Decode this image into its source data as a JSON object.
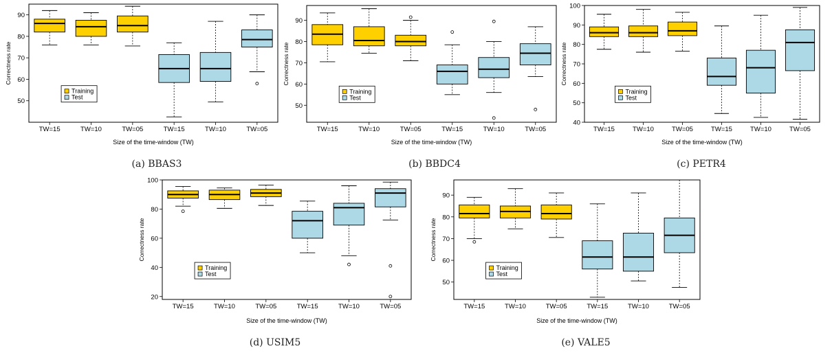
{
  "colors": {
    "training": "#FFD000",
    "test": "#ADD8E6",
    "ink": "#000000",
    "caption_text": "#222222"
  },
  "chart_data": [
    {
      "type": "box",
      "caption": "(a) BBAS3",
      "xlabel": "Size of the time-window (TW)",
      "ylabel": "Correctness rate",
      "categories": [
        "TW=15",
        "TW=10",
        "TW=05",
        "TW=15",
        "TW=10",
        "TW=05"
      ],
      "yticks": [
        50,
        60,
        70,
        80,
        90
      ],
      "ylim": [
        40,
        95
      ],
      "legend": {
        "position": "bottom-left",
        "entries": [
          "Training",
          "Test"
        ]
      },
      "series": [
        {
          "name": "Training",
          "boxes": [
            {
              "whislo": 76,
              "q1": 82,
              "med": 86,
              "q3": 88,
              "whishi": 92,
              "fliers": []
            },
            {
              "whislo": 76,
              "q1": 80,
              "med": 84.5,
              "q3": 87.5,
              "whishi": 91,
              "fliers": []
            },
            {
              "whislo": 75.5,
              "q1": 82,
              "med": 85,
              "q3": 89.5,
              "whishi": 94,
              "fliers": []
            }
          ]
        },
        {
          "name": "Test",
          "boxes": [
            {
              "whislo": 42.5,
              "q1": 58.5,
              "med": 65,
              "q3": 71.5,
              "whishi": 77,
              "fliers": []
            },
            {
              "whislo": 49.5,
              "q1": 59,
              "med": 65,
              "q3": 72.5,
              "whishi": 87,
              "fliers": []
            },
            {
              "whislo": 63.5,
              "q1": 75,
              "med": 78.5,
              "q3": 83,
              "whishi": 90,
              "fliers": [
                58
              ]
            }
          ]
        }
      ]
    },
    {
      "type": "box",
      "caption": "(b) BBDC4",
      "xlabel": "Size of the time-window (TW)",
      "ylabel": "Correctness rate",
      "categories": [
        "TW=15",
        "TW=10",
        "TW=05",
        "TW=15",
        "TW=10",
        "TW=05"
      ],
      "yticks": [
        50,
        60,
        70,
        80,
        90
      ],
      "ylim": [
        42,
        97
      ],
      "legend": {
        "position": "bottom-left",
        "entries": [
          "Training",
          "Test"
        ]
      },
      "series": [
        {
          "name": "Training",
          "boxes": [
            {
              "whislo": 70.5,
              "q1": 78.5,
              "med": 83.5,
              "q3": 88,
              "whishi": 93.5,
              "fliers": []
            },
            {
              "whislo": 74.5,
              "q1": 78,
              "med": 80.5,
              "q3": 87,
              "whishi": 95.5,
              "fliers": []
            },
            {
              "whislo": 71,
              "q1": 78,
              "med": 80,
              "q3": 83,
              "whishi": 90,
              "fliers": [
                91.5
              ]
            }
          ]
        },
        {
          "name": "Test",
          "boxes": [
            {
              "whislo": 55,
              "q1": 60,
              "med": 66,
              "q3": 69,
              "whishi": 78.5,
              "fliers": [
                84.5
              ]
            },
            {
              "whislo": 56,
              "q1": 63,
              "med": 67,
              "q3": 72.5,
              "whishi": 80,
              "fliers": [
                89.5,
                44
              ]
            },
            {
              "whislo": 63.5,
              "q1": 69,
              "med": 74.5,
              "q3": 79,
              "whishi": 87,
              "fliers": [
                48
              ]
            }
          ]
        }
      ]
    },
    {
      "type": "box",
      "caption": "(c) PETR4",
      "xlabel": "Size of the time-window (TW)",
      "ylabel": "Correctness rate",
      "categories": [
        "TW=15",
        "TW=10",
        "TW=05",
        "TW=15",
        "TW=10",
        "TW=05"
      ],
      "yticks": [
        40,
        50,
        60,
        70,
        80,
        90,
        100
      ],
      "ylim": [
        40,
        100
      ],
      "legend": {
        "position": "bottom-left",
        "entries": [
          "Training",
          "Test"
        ]
      },
      "series": [
        {
          "name": "Training",
          "boxes": [
            {
              "whislo": 77.5,
              "q1": 84,
              "med": 86,
              "q3": 89,
              "whishi": 95.5,
              "fliers": []
            },
            {
              "whislo": 76,
              "q1": 84,
              "med": 86,
              "q3": 89.5,
              "whishi": 98,
              "fliers": []
            },
            {
              "whislo": 76.5,
              "q1": 84.5,
              "med": 87,
              "q3": 91.5,
              "whishi": 96.5,
              "fliers": []
            }
          ]
        },
        {
          "name": "Test",
          "boxes": [
            {
              "whislo": 44.5,
              "q1": 59,
              "med": 63.5,
              "q3": 73,
              "whishi": 89.5,
              "fliers": []
            },
            {
              "whislo": 42.5,
              "q1": 55,
              "med": 68,
              "q3": 77,
              "whishi": 95,
              "fliers": []
            },
            {
              "whislo": 41.5,
              "q1": 66.5,
              "med": 81,
              "q3": 87.5,
              "whishi": 99,
              "fliers": []
            }
          ]
        }
      ]
    },
    {
      "type": "box",
      "caption": "(d) USIM5",
      "xlabel": "Size of the time-window (TW)",
      "ylabel": "Correctness rate",
      "categories": [
        "TW=15",
        "TW=10",
        "TW=05",
        "TW=15",
        "TW=10",
        "TW=05"
      ],
      "yticks": [
        20,
        40,
        60,
        80,
        100
      ],
      "ylim": [
        18,
        100
      ],
      "legend": {
        "position": "bottom-left",
        "entries": [
          "Training",
          "Test"
        ]
      },
      "series": [
        {
          "name": "Training",
          "boxes": [
            {
              "whislo": 82,
              "q1": 87.5,
              "med": 90,
              "q3": 92.5,
              "whishi": 95.5,
              "fliers": [
                78.5
              ]
            },
            {
              "whislo": 80.5,
              "q1": 86.5,
              "med": 90,
              "q3": 93,
              "whishi": 94.5,
              "fliers": []
            },
            {
              "whislo": 82.5,
              "q1": 88.5,
              "med": 91,
              "q3": 93.5,
              "whishi": 96.5,
              "fliers": []
            }
          ]
        },
        {
          "name": "Test",
          "boxes": [
            {
              "whislo": 50,
              "q1": 60,
              "med": 72,
              "q3": 78.5,
              "whishi": 85.5,
              "fliers": []
            },
            {
              "whislo": 48,
              "q1": 69,
              "med": 81,
              "q3": 84,
              "whishi": 96,
              "fliers": [
                42
              ]
            },
            {
              "whislo": 72.5,
              "q1": 81.5,
              "med": 91,
              "q3": 94,
              "whishi": 98.5,
              "fliers": [
                41,
                20
              ]
            }
          ]
        }
      ]
    },
    {
      "type": "box",
      "caption": "(e) VALE5",
      "xlabel": "Size of the time-window (TW)",
      "ylabel": "Correctness rate",
      "categories": [
        "TW=15",
        "TW=10",
        "TW=05",
        "TW=15",
        "TW=10",
        "TW=05"
      ],
      "yticks": [
        50,
        60,
        70,
        80,
        90
      ],
      "ylim": [
        42,
        97
      ],
      "legend": {
        "position": "bottom-left",
        "entries": [
          "Training",
          "Test"
        ]
      },
      "series": [
        {
          "name": "Training",
          "boxes": [
            {
              "whislo": 70,
              "q1": 79.5,
              "med": 81.5,
              "q3": 85.5,
              "whishi": 89,
              "fliers": [
                68.5
              ]
            },
            {
              "whislo": 74.5,
              "q1": 79.5,
              "med": 82.5,
              "q3": 85,
              "whishi": 93,
              "fliers": []
            },
            {
              "whislo": 70.5,
              "q1": 79,
              "med": 81.5,
              "q3": 85.5,
              "whishi": 91,
              "fliers": []
            }
          ]
        },
        {
          "name": "Test",
          "boxes": [
            {
              "whislo": 43,
              "q1": 56,
              "med": 61.5,
              "q3": 69,
              "whishi": 86,
              "fliers": []
            },
            {
              "whislo": 50.5,
              "q1": 55,
              "med": 61.5,
              "q3": 72.5,
              "whishi": 91,
              "fliers": []
            },
            {
              "whislo": 47.5,
              "q1": 63.5,
              "med": 71.5,
              "q3": 79.5,
              "whishi": 97,
              "fliers": []
            }
          ]
        }
      ]
    }
  ]
}
